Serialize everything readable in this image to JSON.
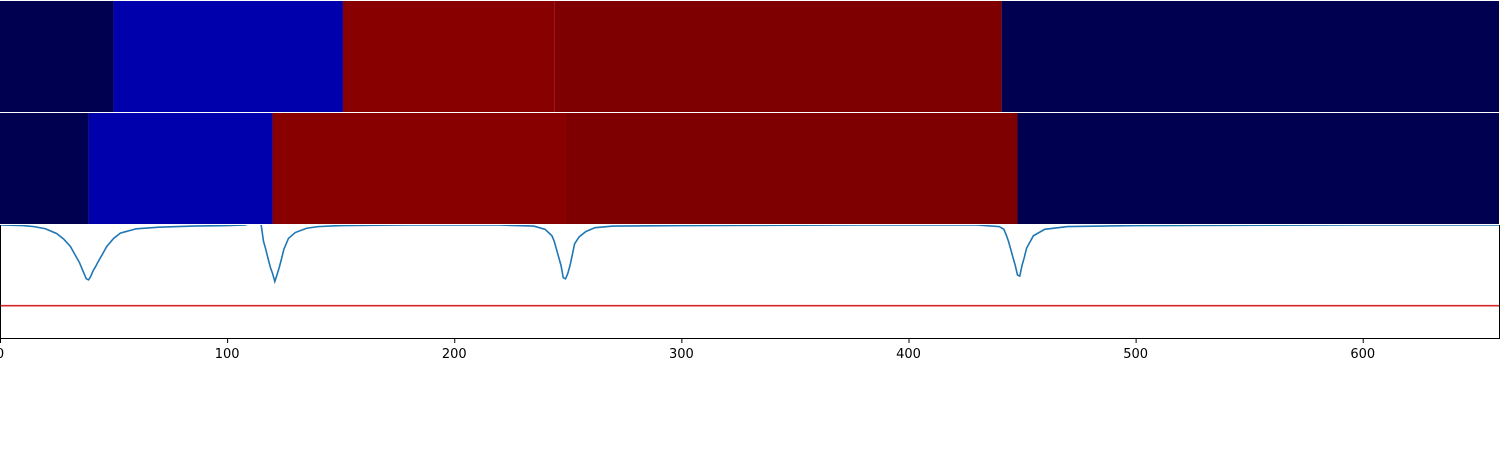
{
  "chart_data": {
    "type": "heatmap",
    "title": "",
    "xlabel": "",
    "ylabel": "",
    "xlim": [
      0,
      660
    ],
    "x_ticks": [
      0,
      100,
      200,
      300,
      400,
      500,
      600
    ],
    "x_tick_labels": [
      "0",
      "100",
      "200",
      "300",
      "400",
      "500",
      "600"
    ],
    "grid": false,
    "legend": "none",
    "segment_rows": [
      {
        "segments": [
          {
            "start": 0,
            "end": 50,
            "color": "#000050"
          },
          {
            "start": 50,
            "end": 151,
            "color": "#0000ad"
          },
          {
            "start": 151,
            "end": 244,
            "color": "#880000"
          },
          {
            "start": 244,
            "end": 441,
            "color": "#7f0000"
          },
          {
            "start": 441,
            "end": 660,
            "color": "#000050"
          }
        ]
      },
      {
        "segments": [
          {
            "start": 0,
            "end": 39,
            "color": "#000050"
          },
          {
            "start": 39,
            "end": 120,
            "color": "#0000ad"
          },
          {
            "start": 120,
            "end": 249,
            "color": "#880000"
          },
          {
            "start": 249,
            "end": 448,
            "color": "#7f0000"
          },
          {
            "start": 448,
            "end": 660,
            "color": "#000050"
          }
        ]
      }
    ],
    "line_series": {
      "color": "#1f77b4",
      "ylim": [
        -1.1,
        0.0
      ],
      "baseline": 0.0,
      "x": [
        0,
        10,
        15,
        20,
        25,
        28,
        31,
        33,
        35,
        36,
        37,
        38,
        39,
        40,
        41,
        42,
        43,
        45,
        47,
        50,
        53,
        60,
        70,
        85,
        100,
        108,
        112,
        114,
        115,
        116,
        117,
        118,
        119,
        120,
        121,
        122,
        123,
        124,
        125,
        127,
        130,
        135,
        140,
        150,
        180,
        220,
        235,
        240,
        243,
        244,
        245,
        246,
        247,
        248,
        249,
        250,
        251,
        252,
        253,
        255,
        258,
        262,
        270,
        300,
        380,
        430,
        440,
        442,
        443,
        444,
        445,
        446,
        447,
        448,
        449,
        450,
        451,
        452,
        455,
        460,
        470,
        500,
        600,
        660
      ],
      "y": [
        0,
        -0.01,
        -0.03,
        -0.07,
        -0.16,
        -0.26,
        -0.4,
        -0.55,
        -0.7,
        -0.8,
        -0.9,
        -1.0,
        -1.02,
        -0.95,
        -0.85,
        -0.78,
        -0.7,
        -0.55,
        -0.4,
        -0.25,
        -0.15,
        -0.07,
        -0.04,
        -0.02,
        -0.01,
        0,
        0.05,
        0.05,
        0,
        -0.3,
        -0.45,
        -0.62,
        -0.78,
        -0.9,
        -1.05,
        -0.92,
        -0.78,
        -0.62,
        -0.45,
        -0.25,
        -0.14,
        -0.06,
        -0.03,
        -0.01,
        0,
        0,
        -0.02,
        -0.08,
        -0.2,
        -0.3,
        -0.45,
        -0.6,
        -0.75,
        -0.98,
        -1.0,
        -0.9,
        -0.75,
        -0.55,
        -0.35,
        -0.22,
        -0.12,
        -0.05,
        -0.02,
        -0.01,
        0,
        0,
        -0.03,
        -0.08,
        -0.18,
        -0.3,
        -0.45,
        -0.6,
        -0.75,
        -0.93,
        -0.95,
        -0.75,
        -0.6,
        -0.43,
        -0.2,
        -0.08,
        -0.03,
        -0.01,
        0,
        0
      ]
    },
    "hline": {
      "y": -1.5,
      "color": "#d62728"
    }
  }
}
